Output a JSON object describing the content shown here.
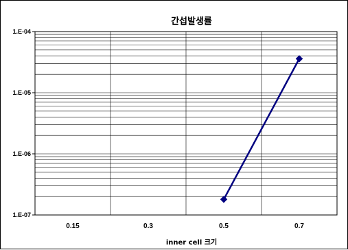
{
  "chart_data": {
    "type": "line",
    "title": "간섭발생률",
    "xlabel": "inner cell 크기",
    "ylabel": "",
    "categories": [
      "0.15",
      "0.3",
      "0.5",
      "0.7"
    ],
    "yscale": "log",
    "ylim": [
      1e-07,
      0.0001
    ],
    "ytick_labels": [
      "1.E-04",
      "1.E-05",
      "1.E-06",
      "1.E-07"
    ],
    "grid": true,
    "legend": "none",
    "series": [
      {
        "values": [
          null,
          null,
          1.8e-07,
          3.6e-05
        ],
        "color": "#000080"
      }
    ]
  }
}
